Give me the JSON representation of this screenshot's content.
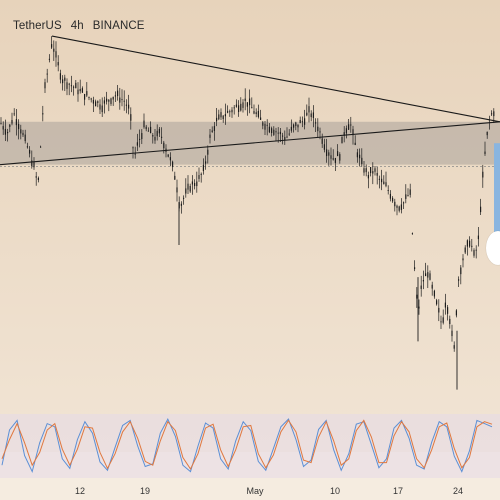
{
  "header": {
    "symbol": "TetherUS",
    "interval": "4h",
    "exchange": "BINANCE"
  },
  "colors": {
    "background_top": "#e7d3bb",
    "background_bottom": "#f2e6d7",
    "candle": "#1c1c1c",
    "trendline": "#1a1a1a",
    "resistance_zone": "#a9a39b",
    "position_box": "#89b5e0",
    "stoch_k": "#5b8fd6",
    "stoch_d": "#e0783f"
  },
  "x_axis": {
    "ticks": [
      "12",
      "19",
      "May",
      "10",
      "17",
      "24"
    ]
  },
  "chart_data": {
    "type": "candlestick",
    "title": "",
    "xlabel": "",
    "ylabel": "",
    "x": [
      "12",
      "19",
      "May",
      "10",
      "17",
      "24"
    ],
    "close_path": [
      [
        0,
        72
      ],
      [
        8,
        68
      ],
      [
        14,
        75
      ],
      [
        20,
        70
      ],
      [
        28,
        62
      ],
      [
        34,
        55
      ],
      [
        38,
        48
      ],
      [
        44,
        82
      ],
      [
        48,
        92
      ],
      [
        52,
        102
      ],
      [
        56,
        96
      ],
      [
        62,
        88
      ],
      [
        70,
        86
      ],
      [
        78,
        84
      ],
      [
        86,
        82
      ],
      [
        94,
        80
      ],
      [
        102,
        78
      ],
      [
        108,
        80
      ],
      [
        116,
        82
      ],
      [
        124,
        80
      ],
      [
        130,
        76
      ],
      [
        134,
        58
      ],
      [
        138,
        64
      ],
      [
        144,
        70
      ],
      [
        150,
        68
      ],
      [
        156,
        66
      ],
      [
        160,
        68
      ],
      [
        166,
        62
      ],
      [
        172,
        56
      ],
      [
        176,
        50
      ],
      [
        180,
        40
      ],
      [
        184,
        44
      ],
      [
        190,
        48
      ],
      [
        198,
        50
      ],
      [
        204,
        54
      ],
      [
        210,
        66
      ],
      [
        216,
        72
      ],
      [
        222,
        74
      ],
      [
        230,
        76
      ],
      [
        238,
        78
      ],
      [
        246,
        80
      ],
      [
        254,
        76
      ],
      [
        262,
        72
      ],
      [
        270,
        70
      ],
      [
        278,
        68
      ],
      [
        286,
        66
      ],
      [
        294,
        70
      ],
      [
        302,
        72
      ],
      [
        310,
        76
      ],
      [
        318,
        70
      ],
      [
        326,
        62
      ],
      [
        334,
        58
      ],
      [
        340,
        60
      ],
      [
        344,
        68
      ],
      [
        350,
        72
      ],
      [
        356,
        62
      ],
      [
        362,
        56
      ],
      [
        368,
        52
      ],
      [
        374,
        54
      ],
      [
        380,
        50
      ],
      [
        386,
        48
      ],
      [
        392,
        44
      ],
      [
        398,
        40
      ],
      [
        404,
        42
      ],
      [
        410,
        46
      ],
      [
        414,
        20
      ],
      [
        418,
        0
      ],
      [
        422,
        12
      ],
      [
        428,
        16
      ],
      [
        432,
        10
      ],
      [
        438,
        2
      ],
      [
        442,
        -4
      ],
      [
        446,
        6
      ],
      [
        450,
        -2
      ],
      [
        454,
        -14
      ],
      [
        458,
        12
      ],
      [
        462,
        20
      ],
      [
        466,
        24
      ],
      [
        470,
        28
      ],
      [
        474,
        22
      ],
      [
        478,
        26
      ],
      [
        482,
        48
      ],
      [
        486,
        64
      ],
      [
        490,
        74
      ],
      [
        494,
        76
      ],
      [
        500,
        76
      ]
    ],
    "trendlines": [
      {
        "from": [
          52,
          104
        ],
        "to": [
          500,
          72
        ]
      },
      {
        "from": [
          0,
          56
        ],
        "to": [
          500,
          72
        ]
      }
    ],
    "zones": [
      {
        "x1": 0,
        "x2": 500,
        "y1": 56,
        "y2": 72
      }
    ],
    "ylim": [
      -30,
      110
    ],
    "grid": false,
    "legend": "none"
  },
  "stochastic": {
    "type": "line",
    "series": [
      {
        "name": "",
        "values": [
          20,
          75,
          90,
          35,
          10,
          55,
          85,
          80,
          30,
          15,
          60,
          88,
          70,
          25,
          12,
          48,
          82,
          90,
          50,
          18,
          22,
          70,
          92,
          65,
          20,
          10,
          50,
          86,
          78,
          30,
          14,
          58,
          88,
          74,
          26,
          12,
          46,
          80,
          92,
          60,
          18,
          28,
          76,
          90,
          44,
          12,
          38,
          84,
          88,
          52,
          16,
          30,
          78,
          90,
          62,
          20,
          14,
          56,
          88,
          80,
          34,
          10,
          42,
          90,
          85,
          80
        ]
      },
      {
        "name": "",
        "values": [
          30,
          60,
          85,
          55,
          20,
          40,
          75,
          85,
          45,
          20,
          45,
          80,
          78,
          40,
          15,
          38,
          72,
          88,
          62,
          26,
          20,
          58,
          88,
          74,
          32,
          14,
          38,
          78,
          84,
          44,
          18,
          44,
          80,
          82,
          38,
          16,
          36,
          72,
          90,
          72,
          28,
          24,
          64,
          88,
          58,
          20,
          30,
          74,
          90,
          64,
          24,
          24,
          66,
          88,
          72,
          30,
          16,
          44,
          80,
          86,
          46,
          16,
          32,
          80,
          88,
          84
        ]
      }
    ],
    "ylim": [
      0,
      100
    ]
  }
}
